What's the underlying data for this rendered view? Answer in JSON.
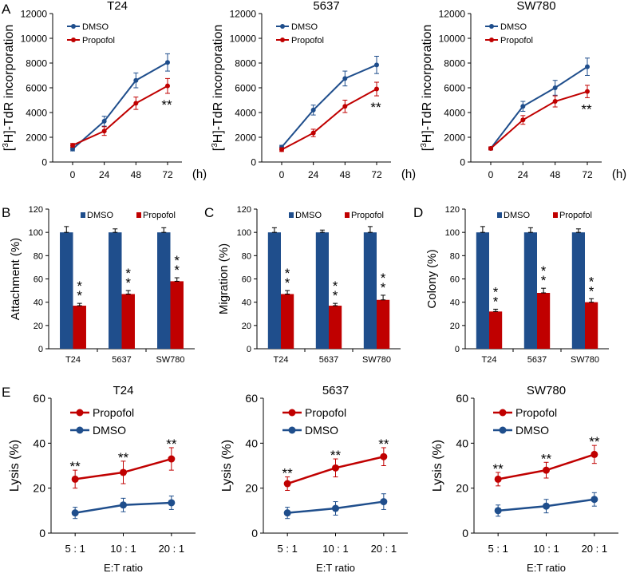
{
  "panel_labels": {
    "A": "A",
    "B": "B",
    "C": "C",
    "D": "D",
    "E": "E"
  },
  "chart_data": [
    {
      "id": "A1",
      "type": "line",
      "title": "T24",
      "x": [
        0,
        24,
        48,
        72
      ],
      "x_unit": "(h)",
      "ylabel": "[3H]-TdR incorporation",
      "ylim": [
        0,
        12000
      ],
      "yticks": [
        0,
        2000,
        4000,
        6000,
        8000,
        10000,
        12000
      ],
      "series": [
        {
          "name": "DMSO",
          "color": "#1f4e8c",
          "values": [
            1050,
            3300,
            6600,
            8050
          ],
          "errors": [
            150,
            400,
            600,
            700
          ]
        },
        {
          "name": "Propofol",
          "color": "#c00000",
          "values": [
            1350,
            2500,
            4750,
            6150
          ],
          "errors": [
            150,
            350,
            500,
            600
          ]
        }
      ],
      "annotations": [
        {
          "x": 72,
          "text": "**"
        }
      ]
    },
    {
      "id": "A2",
      "type": "line",
      "title": "5637",
      "x": [
        0,
        24,
        48,
        72
      ],
      "x_unit": "(h)",
      "ylabel": "[3H]-TdR incorporation",
      "ylim": [
        0,
        12000
      ],
      "yticks": [
        0,
        2000,
        4000,
        6000,
        8000,
        10000,
        12000
      ],
      "series": [
        {
          "name": "DMSO",
          "color": "#1f4e8c",
          "values": [
            1200,
            4200,
            6750,
            7850
          ],
          "errors": [
            150,
            400,
            600,
            700
          ]
        },
        {
          "name": "Propofol",
          "color": "#c00000",
          "values": [
            1000,
            2350,
            4500,
            5900
          ],
          "errors": [
            150,
            300,
            500,
            550
          ]
        }
      ],
      "annotations": [
        {
          "x": 72,
          "text": "**"
        }
      ]
    },
    {
      "id": "A3",
      "type": "line",
      "title": "SW780",
      "x": [
        0,
        24,
        48,
        72
      ],
      "x_unit": "(h)",
      "ylabel": "[3H]-TdR incorporation",
      "ylim": [
        0,
        12000
      ],
      "yticks": [
        0,
        2000,
        4000,
        6000,
        8000,
        10000,
        12000
      ],
      "series": [
        {
          "name": "DMSO",
          "color": "#1f4e8c",
          "values": [
            1100,
            4500,
            6000,
            7700
          ],
          "errors": [
            120,
            400,
            600,
            700
          ]
        },
        {
          "name": "Propofol",
          "color": "#c00000",
          "values": [
            1100,
            3400,
            4900,
            5700
          ],
          "errors": [
            120,
            350,
            450,
            500
          ]
        }
      ],
      "annotations": [
        {
          "x": 72,
          "text": "**"
        }
      ]
    },
    {
      "id": "B",
      "type": "bar",
      "ylabel": "Attachment (%)",
      "categories": [
        "T24",
        "5637",
        "SW780"
      ],
      "ylim": [
        0,
        120
      ],
      "yticks": [
        0,
        20,
        40,
        60,
        80,
        100,
        120
      ],
      "series": [
        {
          "name": "DMSO",
          "color": "#1f4e8c",
          "values": [
            100,
            100,
            100
          ],
          "errors": [
            5,
            3,
            4
          ]
        },
        {
          "name": "Propofol",
          "color": "#c00000",
          "values": [
            37,
            47,
            58
          ],
          "errors": [
            2,
            3,
            3
          ]
        }
      ],
      "annotations": [
        "**",
        "**",
        "**"
      ]
    },
    {
      "id": "C",
      "type": "bar",
      "ylabel": "Migration (%)",
      "categories": [
        "T24",
        "5637",
        "SW780"
      ],
      "ylim": [
        0,
        120
      ],
      "yticks": [
        0,
        20,
        40,
        60,
        80,
        100,
        120
      ],
      "series": [
        {
          "name": "DMSO",
          "color": "#1f4e8c",
          "values": [
            100,
            100,
            100
          ],
          "errors": [
            4,
            2,
            5
          ]
        },
        {
          "name": "Propofol",
          "color": "#c00000",
          "values": [
            47,
            37,
            42
          ],
          "errors": [
            3,
            2,
            4
          ]
        }
      ],
      "annotations": [
        "**",
        "**",
        "**"
      ]
    },
    {
      "id": "D",
      "type": "bar",
      "ylabel": "Colony (%)",
      "categories": [
        "T24",
        "5637",
        "SW780"
      ],
      "ylim": [
        0,
        120
      ],
      "yticks": [
        0,
        20,
        40,
        60,
        80,
        100,
        120
      ],
      "series": [
        {
          "name": "DMSO",
          "color": "#1f4e8c",
          "values": [
            100,
            100,
            100
          ],
          "errors": [
            5,
            4,
            3
          ]
        },
        {
          "name": "Propofol",
          "color": "#c00000",
          "values": [
            32,
            48,
            40
          ],
          "errors": [
            2,
            4,
            3
          ]
        }
      ],
      "annotations": [
        "**",
        "**",
        "**"
      ]
    },
    {
      "id": "E1",
      "type": "line",
      "title": "T24",
      "categories": [
        "5 : 1",
        "10 : 1",
        "20 : 1"
      ],
      "xlabel": "E:T ratio",
      "ylabel": "Lysis (%)",
      "ylim": [
        0,
        60
      ],
      "yticks": [
        0,
        20,
        40,
        60
      ],
      "series": [
        {
          "name": "Propofol",
          "color": "#c00000",
          "values": [
            24,
            27,
            33
          ],
          "errors": [
            4,
            5,
            5
          ]
        },
        {
          "name": "DMSO",
          "color": "#1f4e8c",
          "values": [
            9,
            12.5,
            13.5
          ],
          "errors": [
            2.5,
            3,
            3
          ]
        }
      ],
      "annotations": [
        "**",
        "**",
        "**"
      ]
    },
    {
      "id": "E2",
      "type": "line",
      "title": "5637",
      "categories": [
        "5 : 1",
        "10 : 1",
        "20 : 1"
      ],
      "xlabel": "E:T ratio",
      "ylabel": "Lysis (%)",
      "ylim": [
        0,
        60
      ],
      "yticks": [
        0,
        20,
        40,
        60
      ],
      "series": [
        {
          "name": "Propofol",
          "color": "#c00000",
          "values": [
            22,
            29,
            34
          ],
          "errors": [
            3,
            4,
            4
          ]
        },
        {
          "name": "DMSO",
          "color": "#1f4e8c",
          "values": [
            9,
            11,
            14
          ],
          "errors": [
            2.5,
            3,
            3.5
          ]
        }
      ],
      "annotations": [
        "**",
        "**",
        "**"
      ]
    },
    {
      "id": "E3",
      "type": "line",
      "title": "SW780",
      "categories": [
        "5 : 1",
        "10 : 1",
        "20 : 1"
      ],
      "xlabel": "E:T ratio",
      "ylabel": "Lysis (%)",
      "ylim": [
        0,
        60
      ],
      "yticks": [
        0,
        20,
        40,
        60
      ],
      "series": [
        {
          "name": "Propofol",
          "color": "#c00000",
          "values": [
            24,
            28,
            35
          ],
          "errors": [
            3,
            3.5,
            4
          ]
        },
        {
          "name": "DMSO",
          "color": "#1f4e8c",
          "values": [
            10,
            12,
            15
          ],
          "errors": [
            2.5,
            3,
            3
          ]
        }
      ],
      "annotations": [
        "**",
        "**",
        "**"
      ]
    }
  ]
}
